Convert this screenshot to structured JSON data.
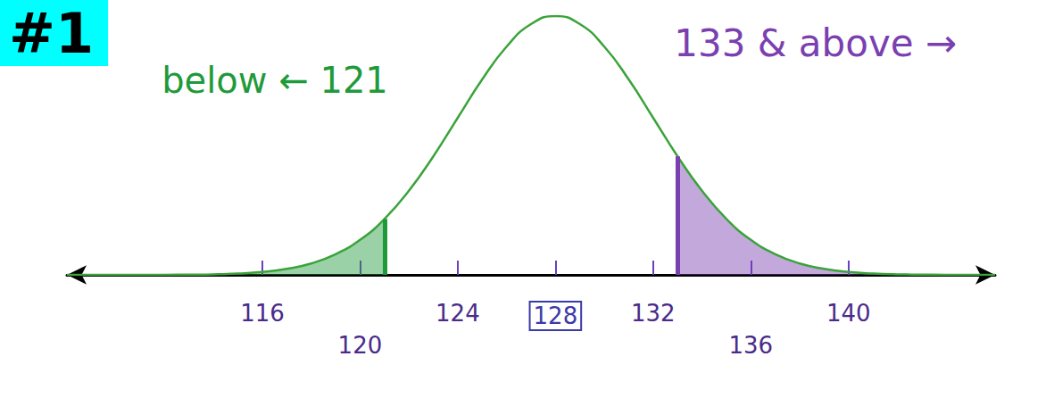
{
  "chart_data": {
    "type": "line",
    "title": "#1",
    "x": [
      108,
      109,
      110,
      111,
      112,
      113,
      114,
      115,
      116,
      117,
      118,
      119,
      120,
      121,
      122,
      123,
      124,
      125,
      126,
      127,
      128,
      129,
      130,
      131,
      132,
      133,
      134,
      135,
      136,
      137,
      138,
      139,
      140,
      141,
      142,
      143,
      144,
      145,
      146
    ],
    "series": [
      {
        "color": "#3aa33a",
        "values": [
          0,
          0,
          0,
          0,
          0,
          0.001,
          0.002,
          0.005,
          0.011,
          0.023,
          0.044,
          0.08,
          0.135,
          0.216,
          0.325,
          0.458,
          0.607,
          0.755,
          0.882,
          0.969,
          1,
          0.969,
          0.882,
          0.755,
          0.607,
          0.458,
          0.325,
          0.216,
          0.135,
          0.08,
          0.044,
          0.023,
          0.011,
          0.005,
          0.002,
          0.001,
          0,
          0,
          0
        ]
      }
    ],
    "tails": [
      {
        "to": 121,
        "color": "#1f9a3a",
        "label": "below ← 121"
      },
      {
        "from": 133,
        "color": "#7a3fb0",
        "label": "133 & above →"
      }
    ],
    "mean": 128,
    "xlim": [
      108,
      146
    ],
    "xticks": [
      116,
      120,
      124,
      128,
      132,
      136,
      140
    ],
    "ylim": [
      0,
      1
    ],
    "tick_labels": "x",
    "grid": false
  }
}
